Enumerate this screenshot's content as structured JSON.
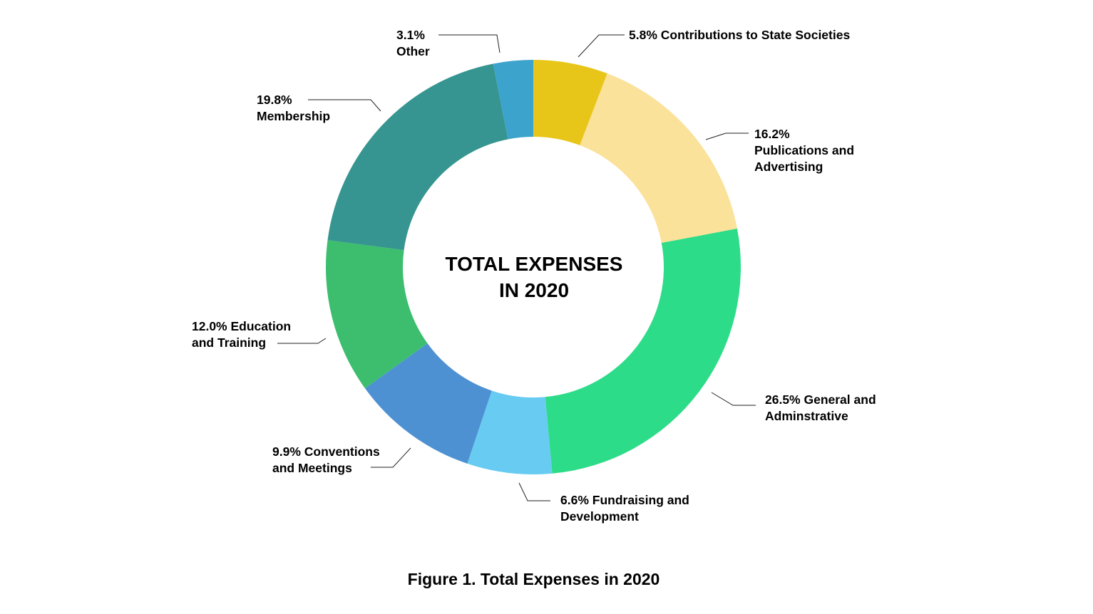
{
  "chart_data": {
    "type": "pie",
    "style": "donut",
    "center_label": [
      "TOTAL EXPENSES",
      "IN 2020"
    ],
    "caption": "Figure 1. Total Expenses in 2020",
    "slices": [
      {
        "value": 5.8,
        "label_lines": [
          "5.8% Contributions to State Societies"
        ],
        "color": "#e8c619"
      },
      {
        "value": 16.2,
        "label_lines": [
          "16.2%",
          "Publications and",
          "Advertising"
        ],
        "color": "#fbe29b"
      },
      {
        "value": 26.5,
        "label_lines": [
          "26.5% General and",
          "Adminstrative"
        ],
        "color": "#2ddc88"
      },
      {
        "value": 6.6,
        "label_lines": [
          "6.6% Fundraising and",
          "Development"
        ],
        "color": "#68cbf2"
      },
      {
        "value": 9.9,
        "label_lines": [
          "9.9% Conventions",
          "and Meetings"
        ],
        "color": "#4e91d2"
      },
      {
        "value": 12.0,
        "label_lines": [
          "12.0% Education",
          "and Training"
        ],
        "color": "#3cbe6e"
      },
      {
        "value": 19.8,
        "label_lines": [
          "19.8%",
          "Membership"
        ],
        "color": "#369590"
      },
      {
        "value": 3.1,
        "label_lines": [
          "3.1%",
          "Other"
        ],
        "color": "#3ca3cc"
      }
    ]
  }
}
